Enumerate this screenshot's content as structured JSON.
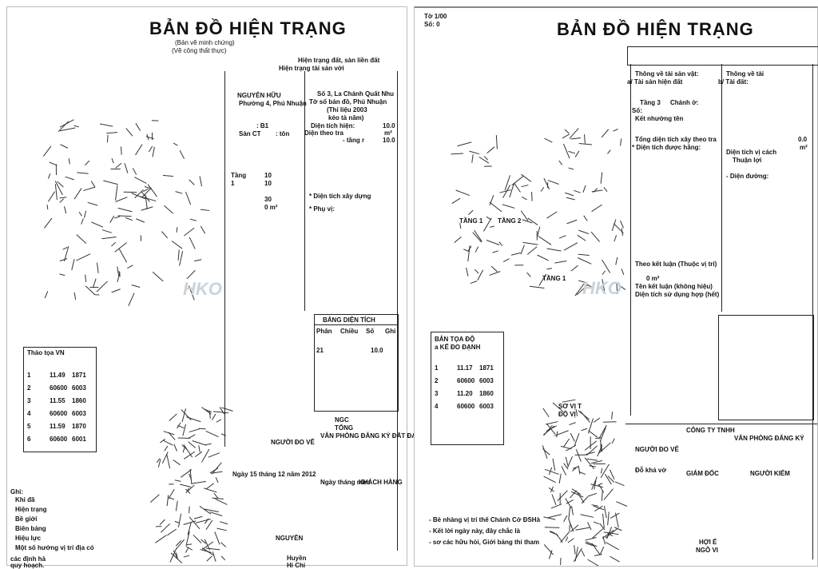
{
  "left_page": {
    "title": "BẢN ĐỒ HIỆN TRẠNG",
    "subtitle_1": "(Bản vẽ minh chứng)",
    "subtitle_2": "(Vẽ công thất thực)",
    "header_1": "Hiện trạng đất, sàn liền đất",
    "header_2": "Hiện trạng tài sản với",
    "owner_1": "NGUYỄN HỮU",
    "owner_2": "Phường 4, Phú Nhuận",
    "addr_1": "Số 3, La Chánh Quất Nhu",
    "addr_2": "Tờ số bản đồ, Phú Nhuận",
    "addr_3": "(Thi liệu 2003",
    "addr_4": "kéo tả năm)",
    "area_label": "Diện tích hiện:",
    "area_value": "10.0",
    "area_2_label": "Diện theo tra",
    "area_2_unit": "m²",
    "floor_label": "- tầng r",
    "floor_value": "10.0",
    "field_b": ": B1",
    "field_san": "Sàn CT",
    "field_ton": ": tôn",
    "label_tan": "Tầng",
    "label_sl": "1",
    "val_10a": "10",
    "val_10b": "10",
    "val_30": "30",
    "val_0m2": "0 m²",
    "note_dien": "* Diện tích xây dựng",
    "note_phu": "* Phụ vị:",
    "coord_table_title": "Thảo tọa VN",
    "coord_rows": [
      [
        "1",
        "11.49",
        "1871"
      ],
      [
        "2",
        "60600",
        "6003"
      ],
      [
        "3",
        "11.55",
        "1860"
      ],
      [
        "4",
        "60600",
        "6003"
      ],
      [
        "5",
        "11.59",
        "1870"
      ],
      [
        "6",
        "60600",
        "6001"
      ]
    ],
    "notes_title": "Ghi:",
    "notes": [
      "Khi đã",
      "Hiện trạng",
      "Bề giới",
      "Biên bảng",
      "Hiệu lực",
      "Một số hướng vị trí địa có"
    ],
    "note_end_1": "các định hả",
    "note_end_2": "quy hoạch.",
    "summary_title": "BẢNG DIỆN TÍCH",
    "summary_cols": [
      "Phân",
      "Chiều",
      "Số",
      "Ghi"
    ],
    "summary_row": [
      "21",
      "10.0"
    ],
    "total_label": "TỔNG",
    "total_label_2": "NGC",
    "signature_1": "VĂN PHÒNG ĐĂNG KÝ ĐẤT ĐAI",
    "signature_2": "NGƯỜI ĐO VẼ",
    "signature_3": "KHÁCH HÀNG",
    "date_1": "Ngày 15 tháng 12 năm 2012",
    "date_2": "Ngày tháng năm",
    "sign_name_1": "NGUYỄN",
    "sign_name_2": "Huyền",
    "sign_name_3": "Hi Chi",
    "watermark": "HKO"
  },
  "right_page": {
    "corner_1": "Tờ 1/00",
    "corner_2": "Số: 0",
    "title": "BẢN ĐỒ HIỆN TRẠNG",
    "col_a_title": "Thông về tài sản vật:",
    "col_a_sub": "a/ Tài sản hiện đất",
    "col_b_title": "Thông về tài",
    "col_b_sub": "b/ Tài đất:",
    "line_a1": "Tầng 3",
    "line_a2": "Chánh ở:",
    "line_a3": "Số:",
    "line_a4": "Kết nhường tên",
    "line_a5": "Tổng diện tích xây theo tra",
    "line_a6": "* Diện tích được hằng:",
    "line_b1": "Diện tích vị cách",
    "line_b2": "Thuận lợi",
    "line_b3": "- Diện đường:",
    "val_00": "0.0",
    "unit_m2": "m²",
    "map_label_1": "TẦNG 1",
    "map_label_2": "TẦNG 2",
    "map_label_3": "TẦNG 1",
    "note_1": "Theo kết luận (Thuộc vị trí)",
    "note_2": "Tên kết luận (không hiệu)",
    "note_3": "Diện tích sử dụng hợp (hết)",
    "note_val": "0 m²",
    "coord_title": "BẢN TỌA ĐỘ",
    "coord_sub": "a KẾ ĐO ĐẠNH",
    "coord_rows": [
      [
        "1",
        "11.17",
        "1871"
      ],
      [
        "2",
        "60600",
        "6003"
      ],
      [
        "3",
        "11.20",
        "1860"
      ],
      [
        "4",
        "60600",
        "6003"
      ]
    ],
    "block_title_1": "SƠ VỊ T",
    "block_title_2": "ĐỘ VỊ",
    "company_1": "CÔNG TY TNHH",
    "company_2": "VĂN PHÒNG ĐĂNG KÝ",
    "role_1": "NGƯỜI ĐO VẼ",
    "role_2": "GIÁM ĐỐC",
    "role_3": "NGƯỜI KIỂM",
    "name_1": "Đỗ khả vở",
    "name_2": "HỢI Ế",
    "name_3": "NGÔ VI",
    "footnote_1": "- Bè nhàng vị trí thế Chánh Cở ĐSHà",
    "footnote_2": "- Kết lời ngày này, đây chắc là",
    "footnote_3": "- sơ các hữu hỏi, Giới bảng thi tham",
    "watermark": "HKO"
  }
}
